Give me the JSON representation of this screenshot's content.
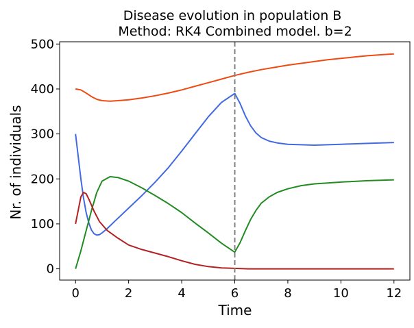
{
  "chart_data": {
    "type": "line",
    "title": "Disease evolution in population B",
    "subtitle": "Method: RK4 Combined model. b=2",
    "xlabel": "Time",
    "ylabel": "Nr. of individuals",
    "xlim": [
      -0.6,
      12.6
    ],
    "ylim": [
      -25,
      505
    ],
    "xticks": [
      0,
      2,
      4,
      6,
      8,
      10,
      12
    ],
    "yticks": [
      0,
      100,
      200,
      300,
      400,
      500
    ],
    "grid": false,
    "vline": {
      "x": 6,
      "style": "dashed",
      "color": "#808080"
    },
    "series": [
      {
        "color": "#ee4a12",
        "points": [
          [
            0,
            400
          ],
          [
            0.2,
            398
          ],
          [
            0.4,
            391
          ],
          [
            0.6,
            383
          ],
          [
            0.8,
            377
          ],
          [
            1.0,
            374
          ],
          [
            1.3,
            373
          ],
          [
            1.6,
            374
          ],
          [
            2,
            376
          ],
          [
            2.5,
            380
          ],
          [
            3,
            385
          ],
          [
            3.5,
            391
          ],
          [
            4,
            398
          ],
          [
            4.5,
            406
          ],
          [
            5,
            414
          ],
          [
            5.5,
            422
          ],
          [
            6,
            430
          ],
          [
            6.5,
            437
          ],
          [
            7,
            443
          ],
          [
            7.5,
            448
          ],
          [
            8,
            453
          ],
          [
            8.5,
            457
          ],
          [
            9,
            461
          ],
          [
            9.5,
            465
          ],
          [
            10,
            468
          ],
          [
            10.5,
            471
          ],
          [
            11,
            474
          ],
          [
            11.5,
            476
          ],
          [
            12,
            478
          ]
        ]
      },
      {
        "color": "#4169e1",
        "points": [
          [
            0,
            300
          ],
          [
            0.1,
            250
          ],
          [
            0.2,
            200
          ],
          [
            0.3,
            158
          ],
          [
            0.4,
            125
          ],
          [
            0.5,
            102
          ],
          [
            0.6,
            86
          ],
          [
            0.7,
            78
          ],
          [
            0.8,
            75
          ],
          [
            0.9,
            76
          ],
          [
            1.0,
            80
          ],
          [
            1.2,
            90
          ],
          [
            1.5,
            107
          ],
          [
            2,
            135
          ],
          [
            2.5,
            163
          ],
          [
            3,
            193
          ],
          [
            3.5,
            225
          ],
          [
            4,
            262
          ],
          [
            4.5,
            300
          ],
          [
            5,
            338
          ],
          [
            5.5,
            370
          ],
          [
            6,
            390
          ],
          [
            6.2,
            368
          ],
          [
            6.4,
            340
          ],
          [
            6.6,
            318
          ],
          [
            6.8,
            302
          ],
          [
            7,
            292
          ],
          [
            7.3,
            284
          ],
          [
            7.6,
            280
          ],
          [
            8,
            277
          ],
          [
            8.5,
            276
          ],
          [
            9,
            275
          ],
          [
            9.5,
            276
          ],
          [
            10,
            277
          ],
          [
            11,
            279
          ],
          [
            12,
            281
          ]
        ]
      },
      {
        "color": "#228b22",
        "points": [
          [
            0,
            0
          ],
          [
            0.2,
            40
          ],
          [
            0.4,
            85
          ],
          [
            0.6,
            130
          ],
          [
            0.8,
            170
          ],
          [
            1.0,
            195
          ],
          [
            1.3,
            205
          ],
          [
            1.6,
            203
          ],
          [
            2,
            195
          ],
          [
            2.5,
            180
          ],
          [
            3,
            163
          ],
          [
            3.5,
            145
          ],
          [
            4,
            125
          ],
          [
            4.5,
            102
          ],
          [
            5,
            80
          ],
          [
            5.5,
            57
          ],
          [
            6,
            37
          ],
          [
            6.2,
            58
          ],
          [
            6.4,
            85
          ],
          [
            6.6,
            110
          ],
          [
            6.8,
            130
          ],
          [
            7,
            146
          ],
          [
            7.3,
            160
          ],
          [
            7.6,
            170
          ],
          [
            8,
            178
          ],
          [
            8.5,
            185
          ],
          [
            9,
            189
          ],
          [
            9.5,
            191
          ],
          [
            10,
            193
          ],
          [
            11,
            196
          ],
          [
            12,
            198
          ]
        ]
      },
      {
        "color": "#b22222",
        "points": [
          [
            0,
            100
          ],
          [
            0.1,
            130
          ],
          [
            0.2,
            160
          ],
          [
            0.3,
            170
          ],
          [
            0.4,
            167
          ],
          [
            0.5,
            155
          ],
          [
            0.7,
            128
          ],
          [
            0.9,
            105
          ],
          [
            1.2,
            85
          ],
          [
            1.6,
            68
          ],
          [
            2,
            53
          ],
          [
            2.5,
            43
          ],
          [
            3,
            35
          ],
          [
            3.5,
            27
          ],
          [
            4,
            18
          ],
          [
            4.5,
            10
          ],
          [
            5,
            5
          ],
          [
            5.5,
            2
          ],
          [
            6,
            1
          ],
          [
            6.5,
            0
          ],
          [
            8,
            0
          ],
          [
            10,
            0
          ],
          [
            12,
            0
          ]
        ]
      }
    ]
  }
}
